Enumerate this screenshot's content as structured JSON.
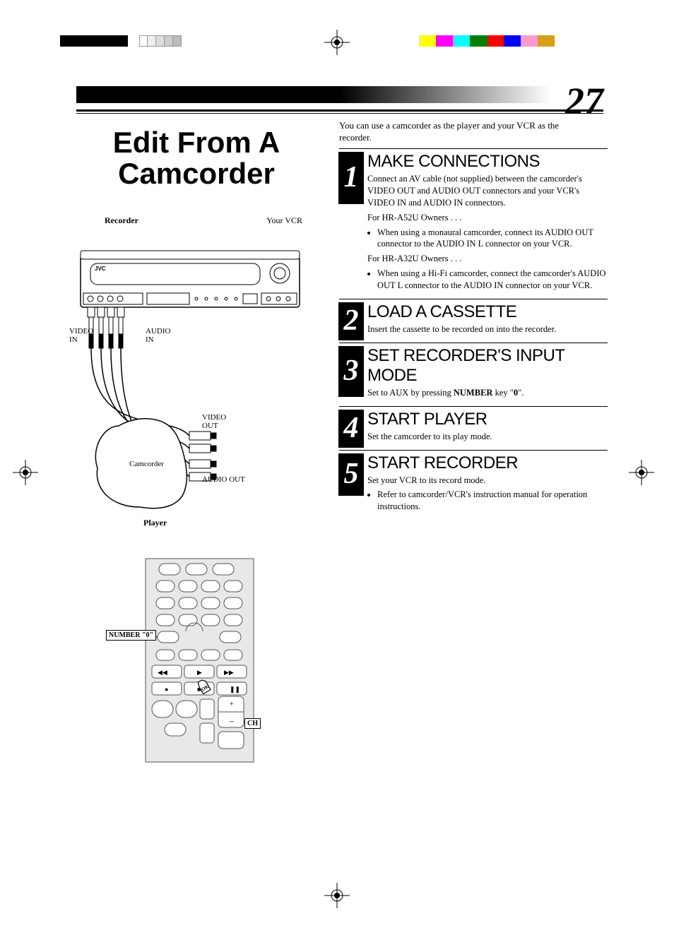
{
  "page_number": "27",
  "main_title": "Edit From A Camcorder",
  "intro": "You can use a camcorder as the player and your VCR as the recorder.",
  "diagram": {
    "recorder_label": "Recorder",
    "your_vcr_label": "Your VCR",
    "player_label": "Player",
    "video_in_label": "VIDEO\nIN",
    "audio_in_label": "AUDIO\nIN",
    "video_out_label": "VIDEO\nOUT",
    "audio_out_label": "AUDIO OUT",
    "camcorder_label": "Camcorder",
    "brand": "JVC"
  },
  "steps": [
    {
      "num": "1",
      "title": "MAKE CONNECTIONS",
      "body_main": "Connect an AV cable (not supplied) between the camcorder's VIDEO OUT and AUDIO OUT connectors and your VCR's VIDEO IN and AUDIO IN connectors.",
      "sub1_label": "For HR-A52U Owners . . .",
      "sub1_bullet": "When using a monaural camcorder, connect its AUDIO OUT connector to the AUDIO IN L connector on your VCR.",
      "sub2_label": "For HR-A32U Owners . . .",
      "sub2_bullet": "When using a Hi-Fi camcorder, connect the camcorder's AUDIO OUT L connector to the AUDIO IN connector on your VCR."
    },
    {
      "num": "2",
      "title": "LOAD A CASSETTE",
      "body_main": "Insert the cassette to be recorded on into the recorder."
    },
    {
      "num": "3",
      "title": "SET RECORDER'S INPUT MODE",
      "body_html": "Set to AUX by pressing <b>NUMBER</b> key \"<b>0</b>\"."
    },
    {
      "num": "4",
      "title": "START PLAYER",
      "body_main": "Set the camcorder to its play mode."
    },
    {
      "num": "5",
      "title": "START RECORDER",
      "body_main": "Set your VCR to its record mode.",
      "bullet": "Refer to camcorder/VCR's instruction manual for operation instructions."
    }
  ],
  "remote": {
    "number0_label": "NUMBER \"0\"",
    "ch_label": "CH",
    "ok_label": "OK"
  },
  "color_bars_left": [
    "#000000",
    "#000000",
    "#000000",
    "#000000"
  ],
  "grey_stops": [
    "#ffffff",
    "#eeeeee",
    "#dddddd",
    "#cccccc",
    "#bbbbbb"
  ],
  "color_bars_right": [
    "#ffff00",
    "#ff00ff",
    "#00ffff",
    "#008000",
    "#ff0000",
    "#0000ff",
    "#ff99cc",
    "#d4a017"
  ]
}
